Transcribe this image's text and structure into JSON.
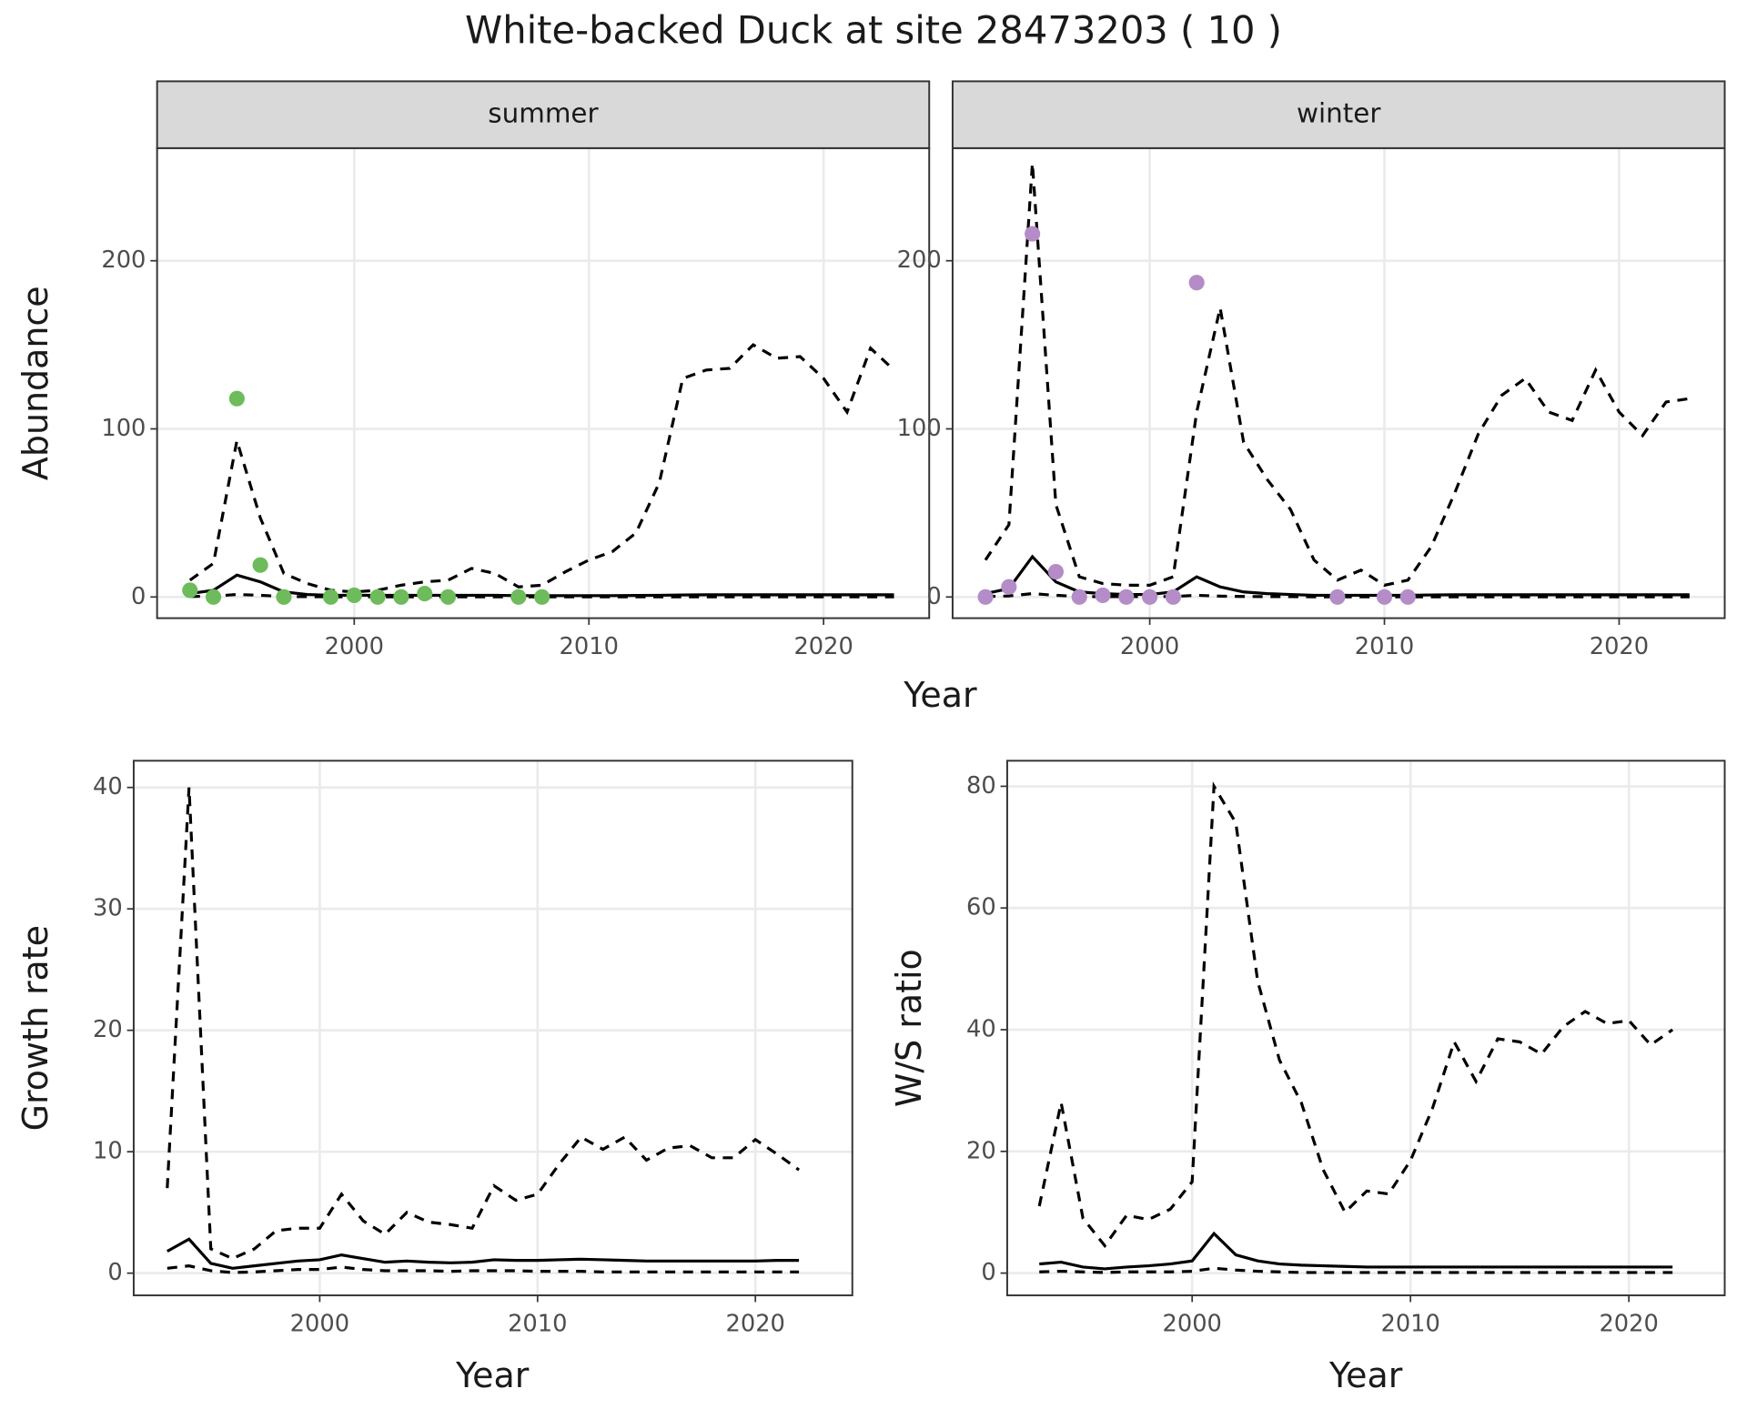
{
  "title": "White-backed Duck at site 28473203 ( 10 )",
  "chart_data": [
    {
      "type": "line",
      "strip": "summer",
      "y_label": "Abundance",
      "x_label": "Year",
      "x": [
        1993,
        1994,
        1995,
        1996,
        1997,
        1998,
        1999,
        2000,
        2001,
        2002,
        2003,
        2004,
        2005,
        2006,
        2007,
        2008,
        2009,
        2010,
        2011,
        2012,
        2013,
        2014,
        2015,
        2016,
        2017,
        2018,
        2019,
        2020,
        2021,
        2022,
        2023
      ],
      "series": [
        {
          "color": "#000000",
          "dashed": true,
          "values": [
            10,
            20,
            93,
            47,
            14,
            8,
            4,
            3,
            4,
            7,
            9,
            10,
            17,
            14,
            6,
            7,
            15,
            22,
            27,
            38,
            68,
            130,
            135,
            136,
            150,
            142,
            143,
            130,
            110,
            148,
            135
          ]
        },
        {
          "color": "#000000",
          "dashed": false,
          "values": [
            2,
            4,
            13,
            9,
            3,
            1.5,
            1,
            1,
            1,
            1,
            1,
            1,
            1,
            1,
            0.8,
            0.8,
            0.8,
            0.8,
            0.8,
            0.9,
            1,
            1.2,
            1.3,
            1.3,
            1.3,
            1.3,
            1.3,
            1.3,
            1.3,
            1.3,
            1.3
          ]
        },
        {
          "color": "#000000",
          "dashed": true,
          "values": [
            0.3,
            0.5,
            1.5,
            1,
            0.3,
            0.2,
            0.1,
            0.1,
            0.1,
            0.1,
            0.1,
            0.1,
            0.1,
            0.1,
            0.1,
            0.1,
            0.1,
            0.1,
            0.1,
            0.1,
            0.1,
            0.1,
            0.1,
            0.1,
            0.1,
            0.1,
            0.1,
            0.1,
            0.1,
            0.1,
            0.1
          ]
        }
      ],
      "points": {
        "color": "#6dbb5b",
        "x": [
          1993,
          1994,
          1995,
          1996,
          1997,
          1999,
          2000,
          2001,
          2002,
          2003,
          2004,
          2007,
          2008
        ],
        "values": [
          4,
          0,
          118,
          19,
          0,
          0,
          1,
          0,
          0,
          2,
          0,
          0,
          0
        ]
      },
      "xlim": [
        1991.6,
        2024.5
      ],
      "xticks": [
        2000,
        2010,
        2020
      ],
      "ylim": [
        -12.6,
        267
      ],
      "yticks": [
        0,
        100,
        200
      ],
      "grid": true
    },
    {
      "type": "line",
      "strip": "winter",
      "x": [
        1993,
        1994,
        1995,
        1996,
        1997,
        1998,
        1999,
        2000,
        2001,
        2002,
        2003,
        2004,
        2005,
        2006,
        2007,
        2008,
        2009,
        2010,
        2011,
        2012,
        2013,
        2014,
        2015,
        2016,
        2017,
        2018,
        2019,
        2020,
        2021,
        2022,
        2023
      ],
      "series": [
        {
          "color": "#000000",
          "dashed": true,
          "values": [
            22,
            43,
            258,
            55,
            12,
            8,
            7,
            7,
            12,
            110,
            172,
            92,
            70,
            52,
            22,
            10,
            16,
            7,
            10,
            30,
            62,
            97,
            120,
            130,
            110,
            105,
            135,
            110,
            96,
            116,
            118
          ]
        },
        {
          "color": "#000000",
          "dashed": false,
          "values": [
            2,
            5,
            24,
            9,
            3,
            2,
            1.5,
            1.5,
            3,
            12,
            6,
            3,
            2,
            1.5,
            1,
            1,
            1,
            1,
            1,
            1.2,
            1.3,
            1.3,
            1.3,
            1.3,
            1.3,
            1.3,
            1.3,
            1.3,
            1.3,
            1.3,
            1.3
          ]
        },
        {
          "color": "#000000",
          "dashed": true,
          "values": [
            0.3,
            0.6,
            2,
            1,
            0.3,
            0.2,
            0.2,
            0.2,
            0.3,
            1,
            0.5,
            0.3,
            0.2,
            0.2,
            0.1,
            0.1,
            0.1,
            0.1,
            0.1,
            0.1,
            0.1,
            0.1,
            0.1,
            0.1,
            0.1,
            0.1,
            0.1,
            0.1,
            0.1,
            0.1,
            0.1
          ]
        }
      ],
      "points": {
        "color": "#b48cc8",
        "x": [
          1993,
          1994,
          1995,
          1996,
          1997,
          1998,
          1999,
          2000,
          2001,
          2002,
          2008,
          2010,
          2011
        ],
        "values": [
          0,
          6,
          216,
          15,
          0,
          1,
          0,
          0,
          0,
          187,
          0,
          0,
          0
        ]
      },
      "xlim": [
        1991.6,
        2024.5
      ],
      "xticks": [
        2000,
        2010,
        2020
      ],
      "ylim": [
        -12.6,
        267
      ],
      "yticks": [
        0,
        100,
        200
      ],
      "grid": true
    },
    {
      "type": "line",
      "y_label": "Growth rate",
      "x_label": "Year",
      "x": [
        1993,
        1994,
        1995,
        1996,
        1997,
        1998,
        1999,
        2000,
        2001,
        2002,
        2003,
        2004,
        2005,
        2006,
        2007,
        2008,
        2009,
        2010,
        2011,
        2012,
        2013,
        2014,
        2015,
        2016,
        2017,
        2018,
        2019,
        2020,
        2021,
        2022
      ],
      "series": [
        {
          "color": "#000000",
          "dashed": true,
          "values": [
            7,
            40,
            2,
            1.2,
            2,
            3.5,
            3.7,
            3.7,
            6.5,
            4.3,
            3.2,
            5,
            4.2,
            4,
            3.7,
            7.2,
            6,
            6.5,
            9,
            11.2,
            10.2,
            11.2,
            9.3,
            10.3,
            10.5,
            9.5,
            9.5,
            11,
            9.8,
            8.5
          ]
        },
        {
          "color": "#000000",
          "dashed": false,
          "values": [
            1.8,
            2.8,
            0.8,
            0.4,
            0.6,
            0.8,
            1,
            1.1,
            1.5,
            1.2,
            0.9,
            1,
            0.9,
            0.85,
            0.9,
            1.1,
            1.05,
            1.05,
            1.1,
            1.15,
            1.1,
            1.05,
            1,
            1,
            1,
            1,
            1,
            1,
            1.05,
            1.05
          ]
        },
        {
          "color": "#000000",
          "dashed": true,
          "values": [
            0.4,
            0.6,
            0.2,
            0.05,
            0.1,
            0.2,
            0.3,
            0.3,
            0.5,
            0.3,
            0.2,
            0.2,
            0.2,
            0.15,
            0.2,
            0.2,
            0.2,
            0.15,
            0.15,
            0.15,
            0.1,
            0.1,
            0.1,
            0.1,
            0.1,
            0.1,
            0.1,
            0.1,
            0.1,
            0.1
          ]
        }
      ],
      "xlim": [
        1991.46,
        2024.45
      ],
      "xticks": [
        2000,
        2010,
        2020
      ],
      "ylim": [
        -1.83,
        42.2
      ],
      "yticks": [
        0,
        10,
        20,
        30,
        40
      ],
      "grid": true
    },
    {
      "type": "line",
      "y_label": "W/S ratio",
      "x_label": "Year",
      "x": [
        1993,
        1994,
        1995,
        1996,
        1997,
        1998,
        1999,
        2000,
        2001,
        2002,
        2003,
        2004,
        2005,
        2006,
        2007,
        2008,
        2009,
        2010,
        2011,
        2012,
        2013,
        2014,
        2015,
        2016,
        2017,
        2018,
        2019,
        2020,
        2021,
        2022
      ],
      "series": [
        {
          "color": "#000000",
          "dashed": true,
          "values": [
            11,
            28,
            9,
            4.5,
            9.5,
            8.8,
            10.5,
            15,
            80,
            74,
            48,
            35,
            28,
            17,
            10,
            13.5,
            13,
            18.5,
            27,
            38,
            31.5,
            38.5,
            38,
            36,
            40.5,
            43,
            41,
            41.5,
            37.5,
            40
          ]
        },
        {
          "color": "#000000",
          "dashed": false,
          "values": [
            1.5,
            1.8,
            1,
            0.7,
            1,
            1.2,
            1.5,
            2,
            6.5,
            3,
            2,
            1.5,
            1.3,
            1.2,
            1.1,
            1,
            1,
            1,
            1,
            1,
            1,
            1,
            1,
            1,
            1,
            1,
            1,
            1,
            1,
            1
          ]
        },
        {
          "color": "#000000",
          "dashed": true,
          "values": [
            0.2,
            0.3,
            0.2,
            0.1,
            0.2,
            0.2,
            0.2,
            0.3,
            0.8,
            0.5,
            0.3,
            0.2,
            0.1,
            0.1,
            0.1,
            0.1,
            0.1,
            0.1,
            0.1,
            0.1,
            0.1,
            0.1,
            0.1,
            0.1,
            0.1,
            0.1,
            0.1,
            0.1,
            0.1,
            0.1
          ]
        }
      ],
      "xlim": [
        1991.53,
        2024.39
      ],
      "xticks": [
        2000,
        2010,
        2020
      ],
      "ylim": [
        -3.66,
        84.2
      ],
      "yticks": [
        0,
        20,
        40,
        60,
        80
      ],
      "grid": true
    }
  ]
}
